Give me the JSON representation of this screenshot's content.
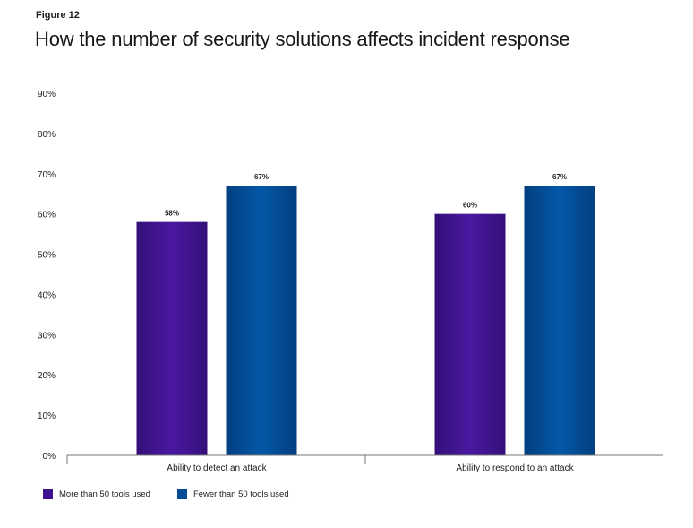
{
  "figure_label": "Figure 12",
  "title": "How the number of security solutions affects incident response",
  "colors": {
    "purple": "#3f1190",
    "blue": "#024b96",
    "axis": "#777777",
    "text": "#1b1b1b"
  },
  "chart_data": {
    "type": "bar",
    "title": "How the number of security solutions affects incident response",
    "categories": [
      "Ability to detect an attack",
      "Ability to respond to an attack"
    ],
    "series": [
      {
        "name": "More than 50 tools used",
        "values": [
          58,
          60
        ],
        "labels": [
          "58%",
          "60%"
        ],
        "color": "#3f1190"
      },
      {
        "name": "Fewer than 50 tools used",
        "values": [
          67,
          67
        ],
        "labels": [
          "67%",
          "67%"
        ],
        "color": "#024b96"
      }
    ],
    "yticks": [
      "0%",
      "10%",
      "20%",
      "30%",
      "40%",
      "50%",
      "60%",
      "70%",
      "80%",
      "90%"
    ],
    "ylim": [
      0,
      90
    ],
    "xlabel": "",
    "ylabel": "",
    "grid": false,
    "legend_position": "bottom-left"
  }
}
